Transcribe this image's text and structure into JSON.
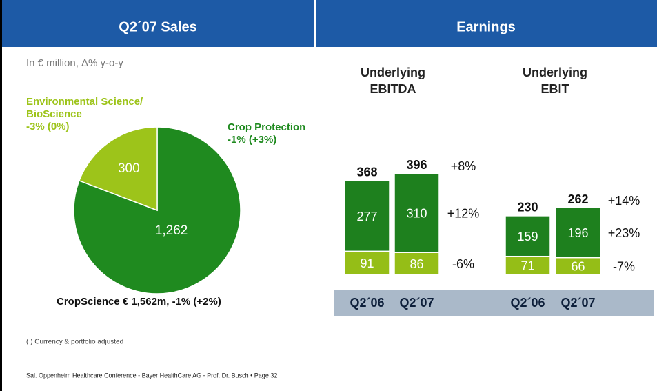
{
  "header": [
    "Q2´07 Sales",
    "Earnings"
  ],
  "footnote": "( ) Currency & portfolio adjusted",
  "footer": "Sal. Oppenheim Healthcare Conference - Bayer HealthCare AG - Prof. Dr. Busch • Page 32",
  "chart_data": [
    {
      "type": "pie",
      "subtitle": "In € million, Δ% y-o-y",
      "categories": [
        [
          "Environmental Science/",
          "BioScience",
          "-3% (0%)"
        ],
        [
          "Crop Protection",
          "-1% (+3%)"
        ]
      ],
      "values": [
        300,
        1262
      ],
      "value_labels": [
        "300",
        "1,262"
      ],
      "colors": [
        "#9dc41a",
        "#1f8a1f"
      ],
      "total_label": "CropScience € 1,562m, -1% (+2%)"
    },
    {
      "type": "stacked_bar",
      "title": [
        "Underlying",
        "EBITDA"
      ],
      "categories": [
        "Q2´06",
        "Q2´07"
      ],
      "series": [
        {
          "color": "#95be17",
          "values": [
            91,
            86
          ]
        },
        {
          "color": "#1e801e",
          "values": [
            277,
            310
          ]
        }
      ],
      "totals": [
        368,
        396
      ],
      "changes": [
        "-6%",
        "+12%",
        "+8%"
      ]
    },
    {
      "type": "stacked_bar",
      "title": [
        "Underlying",
        "EBIT"
      ],
      "categories": [
        "Q2´06",
        "Q2´07"
      ],
      "series": [
        {
          "color": "#95be17",
          "values": [
            71,
            66
          ]
        },
        {
          "color": "#1e801e",
          "values": [
            159,
            196
          ]
        }
      ],
      "totals": [
        230,
        262
      ],
      "changes": [
        "-7%",
        "+23%",
        "+14%"
      ]
    }
  ]
}
